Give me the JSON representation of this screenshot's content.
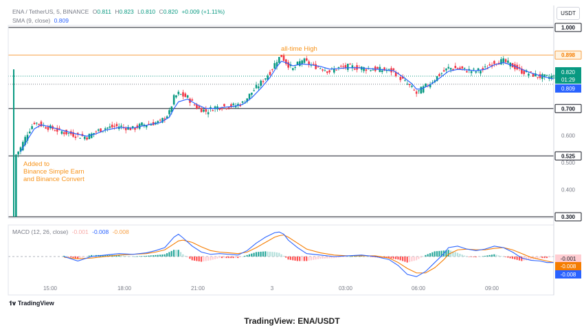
{
  "header": {
    "symbol": "ENA / TetherUS, 5, BINANCE",
    "o_label": "O",
    "o_value": "0.811",
    "h_label": "H",
    "h_value": "0.823",
    "l_label": "L",
    "l_value": "0.810",
    "c_label": "C",
    "c_value": "0.820",
    "change": "+0.009 (+1.11%)",
    "sma_label": "SMA (9, close)",
    "sma_value": "0.809",
    "unit": "USDT"
  },
  "annotations": {
    "ath": "all-time High",
    "event_line1": "Added to",
    "event_line2": "Binance Simple Earn",
    "event_line3": "and Binance Convert"
  },
  "macd_header": {
    "label": "MACD (12, 26, close)",
    "hist": "-0.001",
    "macd": "-0.008",
    "signal": "-0.008"
  },
  "footer": {
    "brand": "TradingView",
    "caption": "TradingView: ENA/USDT"
  },
  "colors": {
    "up": "#089981",
    "down": "#f23645",
    "sma": "#2962ff",
    "signal": "#f57c00",
    "ath_line": "#f7a046",
    "level_line": "#131722",
    "accent_orange": "#f7931a"
  },
  "chart_data": {
    "type": "candlestick",
    "price_axis": {
      "ticks": [
        "0.600",
        "0.500",
        "0.400"
      ],
      "tick_values": [
        0.6,
        0.5,
        0.4
      ],
      "range": [
        0.27,
        1.05
      ]
    },
    "time_axis": {
      "ticks": [
        "15:00",
        "18:00",
        "21:00",
        "3",
        "03:00",
        "06:00",
        "09:00"
      ]
    },
    "levels": [
      {
        "label": "1.000",
        "value": 1.0
      },
      {
        "label": "0.898",
        "value": 0.898,
        "kind": "ath"
      },
      {
        "label": "0.700",
        "value": 0.7
      },
      {
        "label": "0.525",
        "value": 0.525
      },
      {
        "label": "0.300",
        "value": 0.3
      }
    ],
    "price_labels": [
      {
        "text": "0.820",
        "value": 0.82,
        "kind": "last"
      },
      {
        "text": "01:29",
        "value": 0.82,
        "kind": "countdown"
      },
      {
        "text": "0.809",
        "value": 0.809,
        "kind": "sma"
      }
    ],
    "price_path": [
      [
        0,
        0.3
      ],
      [
        1,
        0.53
      ],
      [
        3,
        0.555
      ],
      [
        6,
        0.61
      ],
      [
        9,
        0.65
      ],
      [
        12,
        0.64
      ],
      [
        16,
        0.628
      ],
      [
        22,
        0.612
      ],
      [
        28,
        0.6
      ],
      [
        32,
        0.595
      ],
      [
        36,
        0.615
      ],
      [
        40,
        0.628
      ],
      [
        46,
        0.635
      ],
      [
        52,
        0.625
      ],
      [
        56,
        0.64
      ],
      [
        60,
        0.645
      ],
      [
        64,
        0.65
      ],
      [
        68,
        0.685
      ],
      [
        70,
        0.74
      ],
      [
        72,
        0.755
      ],
      [
        76,
        0.74
      ],
      [
        80,
        0.705
      ],
      [
        84,
        0.69
      ],
      [
        88,
        0.705
      ],
      [
        92,
        0.708
      ],
      [
        96,
        0.71
      ],
      [
        100,
        0.72
      ],
      [
        104,
        0.76
      ],
      [
        108,
        0.795
      ],
      [
        112,
        0.835
      ],
      [
        115,
        0.88
      ],
      [
        117,
        0.895
      ],
      [
        119,
        0.87
      ],
      [
        122,
        0.845
      ],
      [
        126,
        0.88
      ],
      [
        130,
        0.86
      ],
      [
        134,
        0.852
      ],
      [
        138,
        0.838
      ],
      [
        142,
        0.85
      ],
      [
        146,
        0.855
      ],
      [
        150,
        0.852
      ],
      [
        154,
        0.848
      ],
      [
        158,
        0.845
      ],
      [
        162,
        0.842
      ],
      [
        166,
        0.838
      ],
      [
        170,
        0.805
      ],
      [
        174,
        0.775
      ],
      [
        176,
        0.755
      ],
      [
        178,
        0.77
      ],
      [
        182,
        0.795
      ],
      [
        186,
        0.825
      ],
      [
        190,
        0.85
      ],
      [
        194,
        0.848
      ],
      [
        198,
        0.842
      ],
      [
        202,
        0.838
      ],
      [
        206,
        0.848
      ],
      [
        210,
        0.872
      ],
      [
        214,
        0.875
      ],
      [
        218,
        0.858
      ],
      [
        222,
        0.838
      ],
      [
        226,
        0.828
      ],
      [
        230,
        0.818
      ],
      [
        233,
        0.815
      ],
      [
        236,
        0.82
      ]
    ],
    "sma_path": [
      [
        3,
        0.54
      ],
      [
        6,
        0.585
      ],
      [
        9,
        0.625
      ],
      [
        12,
        0.64
      ],
      [
        16,
        0.632
      ],
      [
        22,
        0.618
      ],
      [
        28,
        0.605
      ],
      [
        32,
        0.598
      ],
      [
        36,
        0.607
      ],
      [
        40,
        0.62
      ],
      [
        46,
        0.63
      ],
      [
        52,
        0.628
      ],
      [
        56,
        0.635
      ],
      [
        60,
        0.642
      ],
      [
        64,
        0.648
      ],
      [
        68,
        0.668
      ],
      [
        70,
        0.7
      ],
      [
        72,
        0.725
      ],
      [
        76,
        0.735
      ],
      [
        80,
        0.715
      ],
      [
        84,
        0.7
      ],
      [
        88,
        0.7
      ],
      [
        92,
        0.705
      ],
      [
        96,
        0.708
      ],
      [
        100,
        0.715
      ],
      [
        104,
        0.74
      ],
      [
        108,
        0.775
      ],
      [
        112,
        0.815
      ],
      [
        115,
        0.855
      ],
      [
        117,
        0.875
      ],
      [
        119,
        0.87
      ],
      [
        122,
        0.858
      ],
      [
        126,
        0.865
      ],
      [
        130,
        0.862
      ],
      [
        134,
        0.856
      ],
      [
        138,
        0.846
      ],
      [
        142,
        0.848
      ],
      [
        146,
        0.851
      ],
      [
        150,
        0.851
      ],
      [
        154,
        0.849
      ],
      [
        158,
        0.846
      ],
      [
        162,
        0.843
      ],
      [
        166,
        0.84
      ],
      [
        170,
        0.818
      ],
      [
        174,
        0.792
      ],
      [
        176,
        0.772
      ],
      [
        178,
        0.772
      ],
      [
        182,
        0.788
      ],
      [
        186,
        0.812
      ],
      [
        190,
        0.838
      ],
      [
        194,
        0.845
      ],
      [
        198,
        0.843
      ],
      [
        202,
        0.84
      ],
      [
        206,
        0.845
      ],
      [
        210,
        0.862
      ],
      [
        214,
        0.87
      ],
      [
        218,
        0.86
      ],
      [
        222,
        0.845
      ],
      [
        226,
        0.832
      ],
      [
        230,
        0.822
      ],
      [
        233,
        0.815
      ],
      [
        236,
        0.809
      ]
    ],
    "macd": {
      "range": [
        -0.035,
        0.035
      ],
      "macd_path": [
        [
          22,
          0.0
        ],
        [
          28,
          -0.006
        ],
        [
          34,
          0.0
        ],
        [
          40,
          0.002
        ],
        [
          46,
          0.004
        ],
        [
          52,
          0.003
        ],
        [
          58,
          0.005
        ],
        [
          62,
          0.008
        ],
        [
          66,
          0.012
        ],
        [
          70,
          0.026
        ],
        [
          72,
          0.03
        ],
        [
          74,
          0.025
        ],
        [
          78,
          0.014
        ],
        [
          82,
          0.006
        ],
        [
          86,
          0.003
        ],
        [
          90,
          0.004
        ],
        [
          94,
          0.003
        ],
        [
          98,
          0.002
        ],
        [
          102,
          0.008
        ],
        [
          106,
          0.018
        ],
        [
          110,
          0.026
        ],
        [
          114,
          0.032
        ],
        [
          116,
          0.033
        ],
        [
          118,
          0.03
        ],
        [
          120,
          0.022
        ],
        [
          124,
          0.012
        ],
        [
          128,
          0.004
        ],
        [
          134,
          0.002
        ],
        [
          140,
          0.0
        ],
        [
          146,
          0.001
        ],
        [
          152,
          0.002
        ],
        [
          158,
          0.0
        ],
        [
          164,
          -0.004
        ],
        [
          168,
          -0.012
        ],
        [
          172,
          -0.024
        ],
        [
          176,
          -0.027
        ],
        [
          180,
          -0.02
        ],
        [
          184,
          -0.008
        ],
        [
          188,
          0.004
        ],
        [
          190,
          0.012
        ],
        [
          194,
          0.014
        ],
        [
          198,
          0.01
        ],
        [
          202,
          0.008
        ],
        [
          206,
          0.01
        ],
        [
          210,
          0.014
        ],
        [
          214,
          0.012
        ],
        [
          218,
          0.006
        ],
        [
          222,
          -0.002
        ],
        [
          226,
          -0.005
        ],
        [
          230,
          -0.006
        ],
        [
          233,
          -0.008
        ],
        [
          236,
          -0.008
        ]
      ],
      "signal_path": [
        [
          22,
          -0.001
        ],
        [
          28,
          -0.003
        ],
        [
          34,
          -0.002
        ],
        [
          40,
          0.0
        ],
        [
          46,
          0.002
        ],
        [
          52,
          0.003
        ],
        [
          58,
          0.004
        ],
        [
          62,
          0.006
        ],
        [
          66,
          0.009
        ],
        [
          70,
          0.017
        ],
        [
          72,
          0.021
        ],
        [
          74,
          0.022
        ],
        [
          78,
          0.019
        ],
        [
          82,
          0.013
        ],
        [
          86,
          0.008
        ],
        [
          90,
          0.006
        ],
        [
          94,
          0.005
        ],
        [
          98,
          0.004
        ],
        [
          102,
          0.006
        ],
        [
          106,
          0.012
        ],
        [
          110,
          0.019
        ],
        [
          114,
          0.026
        ],
        [
          116,
          0.028
        ],
        [
          118,
          0.029
        ],
        [
          120,
          0.026
        ],
        [
          124,
          0.018
        ],
        [
          128,
          0.01
        ],
        [
          134,
          0.005
        ],
        [
          140,
          0.002
        ],
        [
          146,
          0.001
        ],
        [
          152,
          0.001
        ],
        [
          158,
          0.001
        ],
        [
          164,
          -0.002
        ],
        [
          168,
          -0.008
        ],
        [
          172,
          -0.016
        ],
        [
          176,
          -0.022
        ],
        [
          180,
          -0.022
        ],
        [
          184,
          -0.015
        ],
        [
          188,
          -0.004
        ],
        [
          190,
          0.003
        ],
        [
          194,
          0.009
        ],
        [
          198,
          0.01
        ],
        [
          202,
          0.009
        ],
        [
          206,
          0.009
        ],
        [
          210,
          0.011
        ],
        [
          214,
          0.012
        ],
        [
          218,
          0.009
        ],
        [
          222,
          0.004
        ],
        [
          226,
          -0.001
        ],
        [
          230,
          -0.004
        ],
        [
          233,
          -0.006
        ],
        [
          236,
          -0.008
        ]
      ],
      "value_labels": [
        {
          "text": "-0.001",
          "value": -0.001,
          "kind": "hist"
        },
        {
          "text": "-0.008",
          "value": -0.008,
          "kind": "signal"
        },
        {
          "text": "-0.008",
          "value": -0.008,
          "kind": "macd"
        }
      ]
    }
  }
}
